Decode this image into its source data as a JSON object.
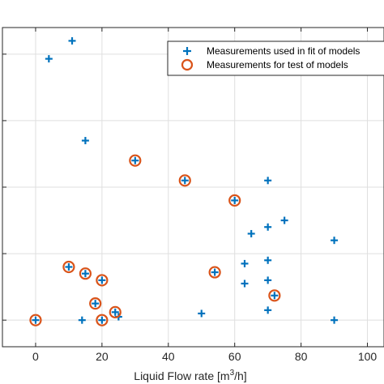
{
  "chart_data": {
    "type": "scatter",
    "title": "",
    "xlabel": "Liquid Flow rate [m",
    "xlabel_sup": "3",
    "xlabel_suffix": "/h]",
    "ylabel": "",
    "xlim": [
      -10,
      105
    ],
    "ylim": [
      -0.4,
      4.4
    ],
    "x_ticks": [
      0,
      20,
      40,
      60,
      80,
      100
    ],
    "x_tick_labels": [
      "0",
      "20",
      "40",
      "60",
      "80",
      "100"
    ],
    "y_ticks": [
      0,
      1,
      2,
      3,
      4
    ],
    "grid": true,
    "legend_position": "top-right",
    "series": [
      {
        "name": "Measurements used in fit of models",
        "marker": "plus",
        "color": "#0072BD",
        "points": [
          [
            4,
            3.93
          ],
          [
            11,
            4.2
          ],
          [
            15,
            2.7
          ],
          [
            0,
            0
          ],
          [
            14,
            0
          ],
          [
            20,
            0
          ],
          [
            25,
            0.05
          ],
          [
            24,
            0.12
          ],
          [
            18,
            0.25
          ],
          [
            20,
            0.6
          ],
          [
            15,
            0.7
          ],
          [
            10,
            0.8
          ],
          [
            30,
            2.4
          ],
          [
            45,
            2.1
          ],
          [
            50,
            0.1
          ],
          [
            54,
            0.72
          ],
          [
            60,
            1.8
          ],
          [
            63,
            0.55
          ],
          [
            63,
            0.85
          ],
          [
            65,
            1.3
          ],
          [
            70,
            2.1
          ],
          [
            70,
            1.4
          ],
          [
            70,
            0.9
          ],
          [
            70,
            0.6
          ],
          [
            70,
            0.15
          ],
          [
            72,
            0.37
          ],
          [
            75,
            1.5
          ],
          [
            90,
            1.2
          ],
          [
            90,
            0
          ]
        ]
      },
      {
        "name": "Measurements for test of models",
        "marker": "circle",
        "color": "#D95319",
        "points": [
          [
            0,
            0
          ],
          [
            10,
            0.8
          ],
          [
            15,
            0.7
          ],
          [
            18,
            0.25
          ],
          [
            20,
            0.6
          ],
          [
            20,
            0
          ],
          [
            24,
            0.12
          ],
          [
            30,
            2.4
          ],
          [
            45,
            2.1
          ],
          [
            54,
            0.72
          ],
          [
            60,
            1.8
          ],
          [
            72,
            0.37
          ]
        ]
      }
    ]
  }
}
